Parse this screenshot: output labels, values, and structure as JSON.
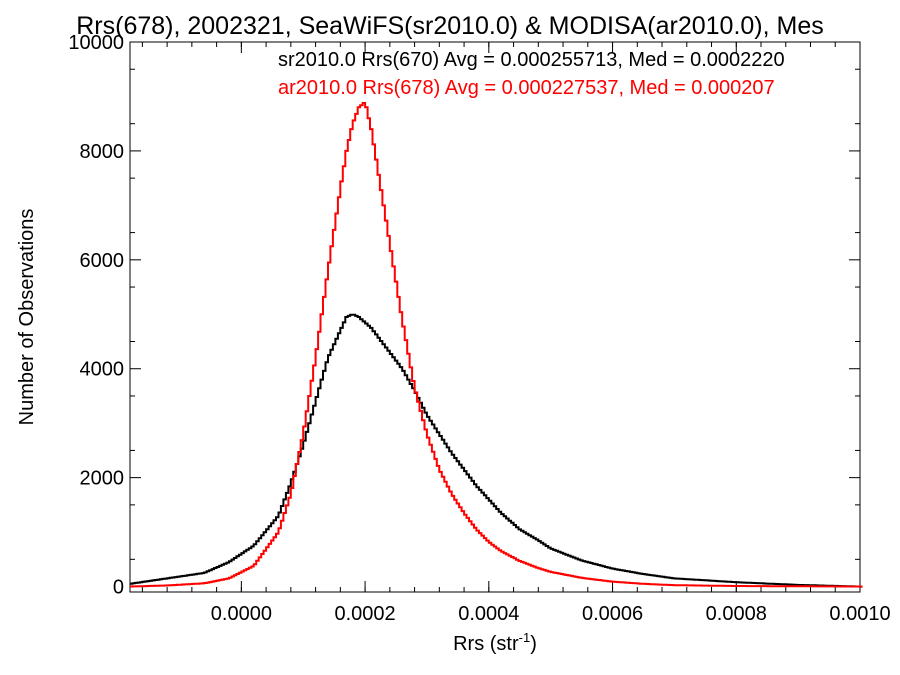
{
  "chart_data": {
    "type": "line",
    "title": "Rrs(678), 2002321, SeaWiFS(sr2010.0) & MODISA(ar2010.0), Mes",
    "xlabel": "Rrs (str",
    "xlabel_sup": "-1",
    "xlabel_tail": ")",
    "ylabel": "Number of Observations",
    "xlim": [
      -0.00018,
      0.001
    ],
    "ylim": [
      -100,
      10000
    ],
    "x_ticks": [
      "0.0000",
      "0.0002",
      "0.0004",
      "0.0006",
      "0.0008",
      "0.0010"
    ],
    "x_tick_values": [
      0,
      0.0002,
      0.0004,
      0.0006,
      0.0008,
      0.001
    ],
    "y_ticks": [
      "0",
      "2000",
      "4000",
      "6000",
      "8000",
      "10000"
    ],
    "y_tick_values": [
      0,
      2000,
      4000,
      6000,
      8000,
      10000
    ],
    "legend_placement": "top-right",
    "series": [
      {
        "name": "sr2010.0 Rrs(670) Avg = 0.000255713, Med = 0.0002220",
        "color": "#000000",
        "x": [
          -0.00018,
          -0.00012,
          -6e-05,
          -2e-05,
          2e-05,
          6e-05,
          8e-05,
          0.0001,
          0.00012,
          0.00014,
          0.00016,
          0.00017,
          0.00018,
          0.00019,
          0.0002,
          0.00021,
          0.00022,
          0.00024,
          0.00026,
          0.00028,
          0.0003,
          0.00032,
          0.00034,
          0.00036,
          0.00038,
          0.0004,
          0.00042,
          0.00045,
          0.00048,
          0.0005,
          0.00055,
          0.0006,
          0.00065,
          0.0007,
          0.0008,
          0.0009,
          0.001
        ],
        "y": [
          50,
          150,
          250,
          450,
          750,
          1300,
          1900,
          2600,
          3400,
          4200,
          4700,
          4950,
          5000,
          4950,
          4850,
          4750,
          4600,
          4300,
          4000,
          3600,
          3150,
          2800,
          2450,
          2150,
          1850,
          1600,
          1350,
          1050,
          850,
          700,
          480,
          330,
          230,
          150,
          80,
          30,
          0
        ]
      },
      {
        "name": "ar2010.0 Rrs(678) Avg = 0.000227537, Med = 0.000207",
        "color": "#ff0000",
        "x": [
          -0.00018,
          -0.00012,
          -6e-05,
          -2e-05,
          2e-05,
          6e-05,
          8e-05,
          0.0001,
          0.00012,
          0.00014,
          0.00016,
          0.00017,
          0.00018,
          0.00019,
          0.0002,
          0.00021,
          0.00022,
          0.00024,
          0.00026,
          0.00028,
          0.0003,
          0.00032,
          0.00034,
          0.00036,
          0.00038,
          0.0004,
          0.00042,
          0.00045,
          0.00048,
          0.0005,
          0.00055,
          0.0006,
          0.00065,
          0.0007,
          0.0008,
          0.0009,
          0.001
        ],
        "y": [
          0,
          20,
          60,
          150,
          380,
          1000,
          1700,
          2800,
          4200,
          5800,
          7300,
          8000,
          8500,
          8800,
          8900,
          8400,
          7700,
          6300,
          4900,
          3650,
          2800,
          2150,
          1700,
          1350,
          1050,
          820,
          650,
          470,
          340,
          270,
          160,
          90,
          50,
          25,
          10,
          5,
          0
        ]
      }
    ]
  }
}
